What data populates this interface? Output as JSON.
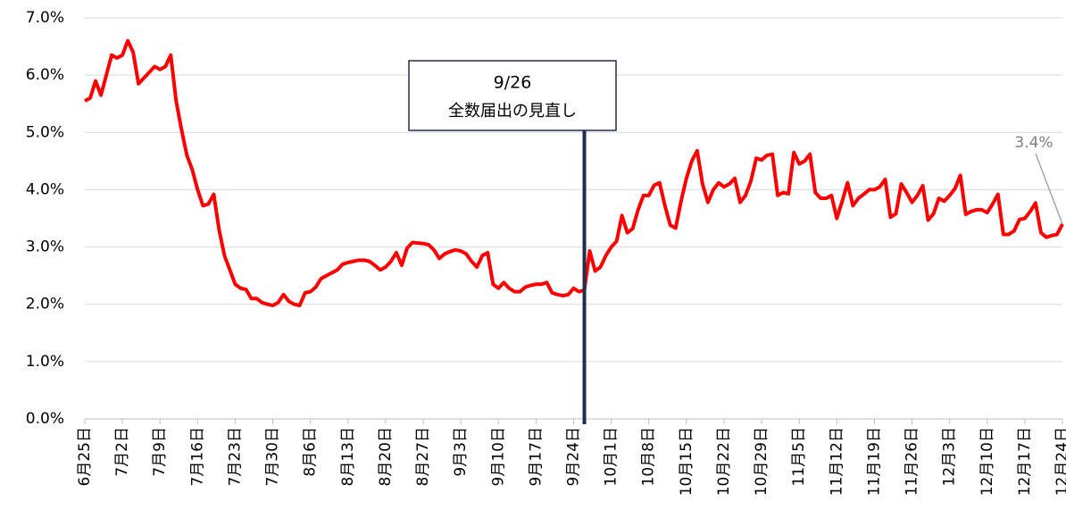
{
  "chart_data": {
    "type": "line",
    "categories": [
      "6月25日",
      null,
      null,
      null,
      null,
      null,
      null,
      "7月2日",
      null,
      null,
      null,
      null,
      null,
      null,
      "7月9日",
      null,
      null,
      null,
      null,
      null,
      null,
      "7月16日",
      null,
      null,
      null,
      null,
      null,
      null,
      "7月23日",
      null,
      null,
      null,
      null,
      null,
      null,
      "7月30日",
      null,
      null,
      null,
      null,
      null,
      null,
      "8月6日",
      null,
      null,
      null,
      null,
      null,
      null,
      "8月13日",
      null,
      null,
      null,
      null,
      null,
      null,
      "8月20日",
      null,
      null,
      null,
      null,
      null,
      null,
      "8月27日",
      null,
      null,
      null,
      null,
      null,
      null,
      "9月3日",
      null,
      null,
      null,
      null,
      null,
      null,
      "9月10日",
      null,
      null,
      null,
      null,
      null,
      null,
      "9月17日",
      null,
      null,
      null,
      null,
      null,
      null,
      "9月24日",
      null,
      null,
      null,
      null,
      null,
      null,
      "10月1日",
      null,
      null,
      null,
      null,
      null,
      null,
      "10月8日",
      null,
      null,
      null,
      null,
      null,
      null,
      "10月15日",
      null,
      null,
      null,
      null,
      null,
      null,
      "10月22日",
      null,
      null,
      null,
      null,
      null,
      null,
      "10月29日",
      null,
      null,
      null,
      null,
      null,
      null,
      "11月5日",
      null,
      null,
      null,
      null,
      null,
      null,
      "11月12日",
      null,
      null,
      null,
      null,
      null,
      null,
      "11月19日",
      null,
      null,
      null,
      null,
      null,
      null,
      "11月26日",
      null,
      null,
      null,
      null,
      null,
      null,
      "12月3日",
      null,
      null,
      null,
      null,
      null,
      null,
      "12月10日",
      null,
      null,
      null,
      null,
      null,
      null,
      "12月17日",
      null,
      null,
      null,
      null,
      null,
      null,
      "12月24日"
    ],
    "series": [
      {
        "color": "#ff0000",
        "values": [
          5.55,
          5.6,
          5.9,
          5.65,
          6.0,
          6.35,
          6.3,
          6.35,
          6.6,
          6.4,
          5.85,
          5.95,
          6.05,
          6.15,
          6.1,
          6.15,
          6.35,
          5.55,
          5.05,
          4.6,
          4.35,
          4.0,
          3.72,
          3.75,
          3.92,
          3.3,
          2.85,
          2.6,
          2.35,
          2.28,
          2.26,
          2.1,
          2.1,
          2.03,
          2.0,
          1.98,
          2.03,
          2.17,
          2.05,
          2.0,
          1.98,
          2.2,
          2.22,
          2.3,
          2.45,
          2.5,
          2.55,
          2.6,
          2.7,
          2.73,
          2.75,
          2.77,
          2.77,
          2.75,
          2.68,
          2.6,
          2.65,
          2.75,
          2.9,
          2.68,
          2.98,
          3.08,
          3.07,
          3.06,
          3.04,
          2.95,
          2.8,
          2.88,
          2.92,
          2.95,
          2.93,
          2.88,
          2.75,
          2.65,
          2.85,
          2.9,
          2.35,
          2.28,
          2.38,
          2.28,
          2.22,
          2.22,
          2.3,
          2.33,
          2.35,
          2.35,
          2.38,
          2.2,
          2.17,
          2.15,
          2.17,
          2.28,
          2.22,
          2.25,
          2.93,
          2.58,
          2.65,
          2.85,
          3.0,
          3.1,
          3.55,
          3.25,
          3.32,
          3.65,
          3.9,
          3.9,
          4.08,
          4.12,
          3.72,
          3.38,
          3.33,
          3.8,
          4.2,
          4.5,
          4.68,
          4.1,
          3.78,
          4.0,
          4.12,
          4.05,
          4.1,
          4.2,
          3.78,
          3.9,
          4.15,
          4.55,
          4.52,
          4.6,
          4.62,
          3.9,
          3.95,
          3.93,
          4.65,
          4.45,
          4.5,
          4.62,
          3.95,
          3.85,
          3.85,
          3.9,
          3.5,
          3.8,
          4.12,
          3.72,
          3.85,
          3.92,
          4.0,
          4.0,
          4.05,
          4.18,
          3.52,
          3.58,
          4.1,
          3.95,
          3.78,
          3.9,
          4.07,
          3.47,
          3.58,
          3.85,
          3.8,
          3.9,
          4.02,
          4.25,
          3.57,
          3.62,
          3.65,
          3.65,
          3.6,
          3.75,
          3.92,
          3.22,
          3.22,
          3.28,
          3.48,
          3.5,
          3.62,
          3.77,
          3.25,
          3.17,
          3.2,
          3.22,
          3.4
        ]
      }
    ],
    "ylim": [
      0,
      7
    ],
    "yticks": [
      {
        "value": 0,
        "label": "0.0%"
      },
      {
        "value": 1,
        "label": "1.0%"
      },
      {
        "value": 2,
        "label": "2.0%"
      },
      {
        "value": 3,
        "label": "3.0%"
      },
      {
        "value": 4,
        "label": "4.0%"
      },
      {
        "value": 5,
        "label": "5.0%"
      },
      {
        "value": 6,
        "label": "6.0%"
      },
      {
        "value": 7,
        "label": "7.0%"
      }
    ],
    "grid": true,
    "event": {
      "at": 93,
      "lines": [
        "9/26",
        "全数届出の見直し"
      ],
      "color": "#1f2d50"
    },
    "end_label": "3.4%"
  }
}
